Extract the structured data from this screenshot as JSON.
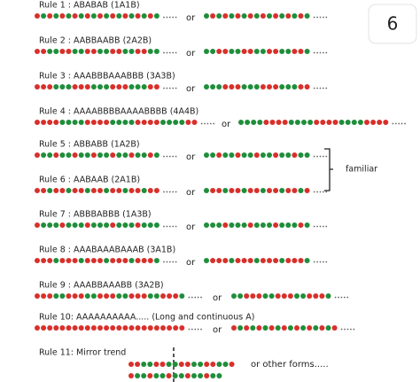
{
  "badge": "6",
  "rules": [
    {
      "label": "Rule 1 : ABABAB (1A1B)",
      "connector": "or"
    },
    {
      "label": "Rule 2 : AABBAABB (2A2B)",
      "connector": "or"
    },
    {
      "label": "Rule 3 : AAABBBAAABBB (3A3B)",
      "connector": "or"
    },
    {
      "label": "Rule 4 : AAAABBBBAAAABBBB (4A4B)",
      "connector": "or"
    },
    {
      "label": "Rule 5 : ABBABB (1A2B)",
      "connector": "or"
    },
    {
      "label": "Rule 6 : AABAAB (2A1B)",
      "connector": "or"
    },
    {
      "label": "Rule 7 : ABBBABBB (1A3B)",
      "connector": "or"
    },
    {
      "label": "Rule 8 : AAABAAABAAAB (3A1B)",
      "connector": "or"
    },
    {
      "label": "Rule 9 : AAABBAAABB (3A2B)",
      "connector": "or"
    },
    {
      "label": "Rule 10: AAAAAAAAAA..... (Long and continuous A)",
      "connector": "or"
    },
    {
      "label": "Rule 11: Mirror trend",
      "connector": "or other forms....."
    }
  ],
  "bracket_label": "familiar"
}
